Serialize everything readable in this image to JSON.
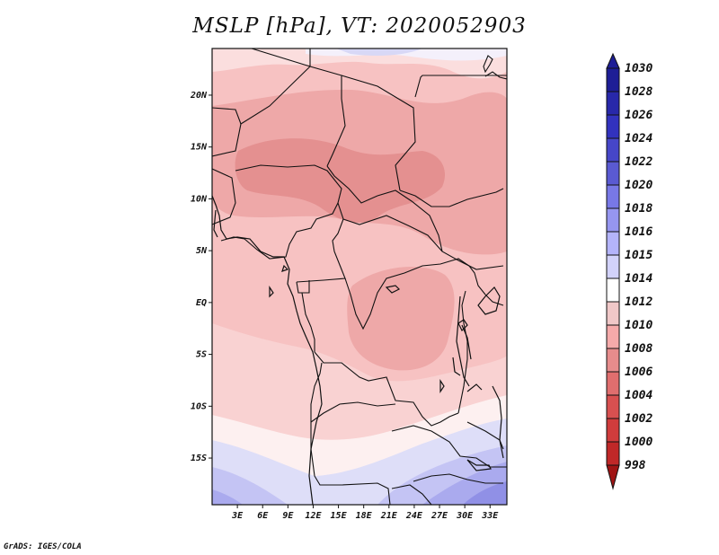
{
  "title": "MSLP [hPa], VT: 2020052903",
  "credit": "GrADS: IGES/COLA",
  "map": {
    "lat_labels": [
      "20N",
      "15N",
      "10N",
      "5N",
      "EQ",
      "5S",
      "10S",
      "15S"
    ],
    "lat_values": [
      20,
      15,
      10,
      5,
      0,
      -5,
      -10,
      -15
    ],
    "lon_labels": [
      "3E",
      "6E",
      "9E",
      "12E",
      "15E",
      "18E",
      "21E",
      "24E",
      "27E",
      "30E",
      "33E"
    ],
    "lon_values": [
      3,
      6,
      9,
      12,
      15,
      18,
      21,
      24,
      27,
      30,
      33
    ]
  },
  "colorbar": {
    "levels": [
      "1030",
      "1028",
      "1026",
      "1024",
      "1022",
      "1020",
      "1018",
      "1016",
      "1015",
      "1014",
      "1012",
      "1010",
      "1008",
      "1006",
      "1004",
      "1002",
      "1000",
      "998"
    ],
    "colors": [
      "#1e1e96",
      "#2828aa",
      "#3232be",
      "#4646c8",
      "#5a5ad2",
      "#7878e6",
      "#9696f0",
      "#b4b4fa",
      "#d2d2fa",
      "#ffffff",
      "#f0c8c8",
      "#f5aaaa",
      "#e68c8c",
      "#e06e6e",
      "#d85050",
      "#d03c3c",
      "#c02828",
      "#a01414"
    ]
  }
}
